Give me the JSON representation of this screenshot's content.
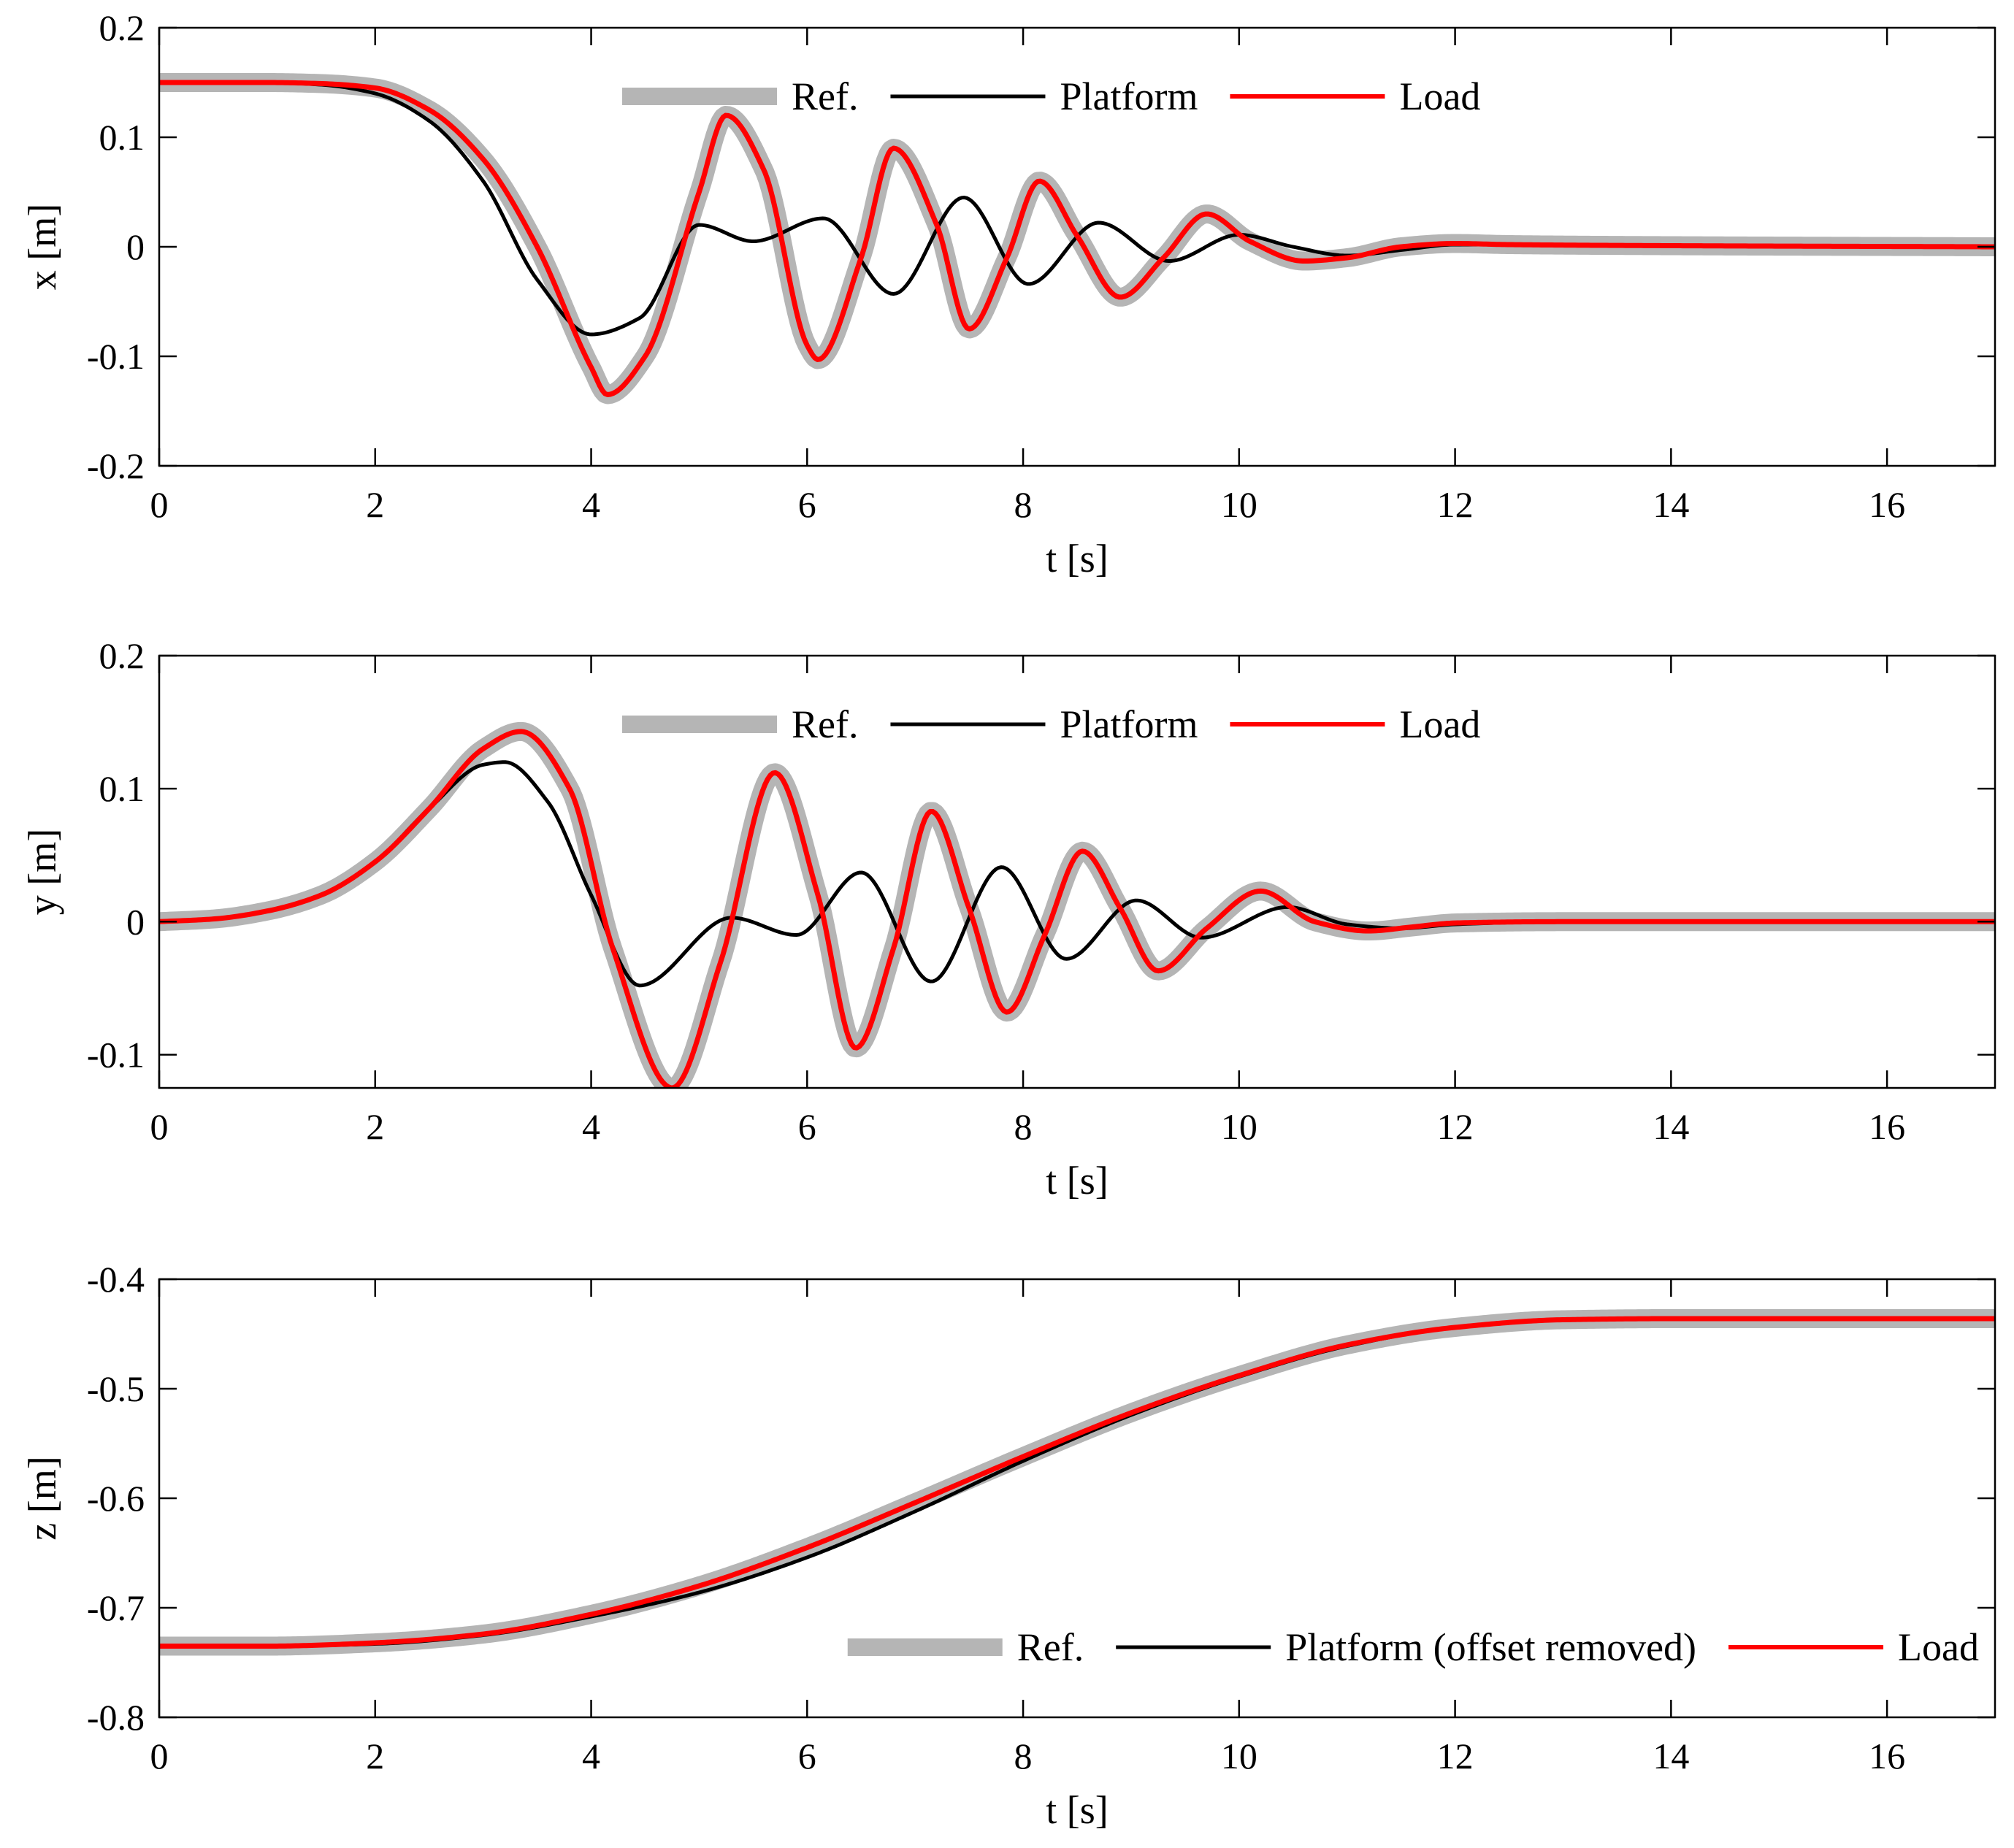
{
  "figure": {
    "description_free": true,
    "series_styles": {
      "ref": {
        "color": "#b5b5b5",
        "label_key": "ref"
      },
      "platform": {
        "color": "#000000",
        "label_key": "platform"
      },
      "load": {
        "color": "#ff0000",
        "label_key": "load"
      }
    }
  },
  "chart_data": [
    {
      "type": "line",
      "id": "x-panel",
      "xlabel": "t [s]",
      "ylabel": "x [m]",
      "xlim": [
        0,
        17
      ],
      "ylim": [
        -0.2,
        0.2
      ],
      "xticks": [
        0,
        2,
        4,
        6,
        8,
        10,
        12,
        14,
        16
      ],
      "xtick_labels": [
        "0",
        "2",
        "4",
        "6",
        "8",
        "10",
        "12",
        "14",
        "16"
      ],
      "yticks": [
        -0.2,
        -0.1,
        0,
        0.1,
        0.2
      ],
      "ytick_labels": [
        "-0.2",
        "-0.1",
        "0",
        "0.1",
        "0.2"
      ],
      "legend": {
        "position": "top-center",
        "entries": [
          "Ref.",
          "Platform",
          "Load"
        ]
      },
      "series": [
        {
          "name": "Ref.",
          "style": "ref",
          "x": [
            0,
            1,
            1.5,
            2,
            2.5,
            3,
            3.5,
            4,
            4.15,
            4.5,
            5,
            5.25,
            5.6,
            6,
            6.1,
            6.5,
            6.8,
            7.2,
            7.5,
            7.85,
            8.15,
            8.5,
            8.9,
            9.3,
            9.7,
            10.1,
            10.6,
            11,
            11.5,
            12,
            12.5,
            14,
            17
          ],
          "y": [
            0.15,
            0.15,
            0.149,
            0.145,
            0.125,
            0.08,
            0.0,
            -0.11,
            -0.135,
            -0.1,
            0.05,
            0.12,
            0.07,
            -0.09,
            -0.103,
            -0.01,
            0.09,
            0.02,
            -0.075,
            -0.01,
            0.06,
            0.01,
            -0.046,
            -0.01,
            0.03,
            0.005,
            -0.013,
            -0.01,
            0.0,
            0.003,
            0.002,
            0.001,
            0.0
          ]
        },
        {
          "name": "Platform",
          "style": "platform",
          "x": [
            0,
            1,
            1.5,
            2,
            2.5,
            3,
            3.5,
            4,
            4.45,
            5,
            5.5,
            6.15,
            6.8,
            7.45,
            8.05,
            8.7,
            9.35,
            10.0,
            10.5,
            11,
            11.5,
            12,
            14,
            17
          ],
          "y": [
            0.15,
            0.15,
            0.148,
            0.14,
            0.115,
            0.06,
            -0.03,
            -0.08,
            -0.065,
            0.02,
            0.005,
            0.026,
            -0.043,
            0.045,
            -0.034,
            0.022,
            -0.013,
            0.011,
            0.0,
            -0.008,
            -0.003,
            0.002,
            0.001,
            0.0
          ]
        },
        {
          "name": "Load",
          "style": "load",
          "x": [
            0,
            1,
            1.5,
            2,
            2.5,
            3,
            3.5,
            4,
            4.15,
            4.5,
            5,
            5.25,
            5.6,
            6,
            6.1,
            6.5,
            6.8,
            7.2,
            7.5,
            7.85,
            8.15,
            8.5,
            8.9,
            9.3,
            9.7,
            10.1,
            10.6,
            11,
            11.5,
            12,
            12.5,
            14,
            17
          ],
          "y": [
            0.15,
            0.15,
            0.149,
            0.145,
            0.125,
            0.08,
            0.0,
            -0.11,
            -0.135,
            -0.1,
            0.05,
            0.12,
            0.07,
            -0.09,
            -0.103,
            -0.01,
            0.09,
            0.02,
            -0.075,
            -0.01,
            0.06,
            0.01,
            -0.046,
            -0.01,
            0.03,
            0.005,
            -0.013,
            -0.01,
            0.0,
            0.003,
            0.002,
            0.001,
            0.0
          ]
        }
      ]
    },
    {
      "type": "line",
      "id": "y-panel",
      "xlabel": "t [s]",
      "ylabel": "y [m]",
      "xlim": [
        0,
        17
      ],
      "ylim": [
        -0.125,
        0.2
      ],
      "xticks": [
        0,
        2,
        4,
        6,
        8,
        10,
        12,
        14,
        16
      ],
      "xtick_labels": [
        "0",
        "2",
        "4",
        "6",
        "8",
        "10",
        "12",
        "14",
        "16"
      ],
      "yticks": [
        -0.1,
        0,
        0.1,
        0.2
      ],
      "ytick_labels": [
        "-0.1",
        "0",
        "0.1",
        "0.2"
      ],
      "legend": {
        "position": "top-center",
        "entries": [
          "Ref.",
          "Platform",
          "Load"
        ]
      },
      "series": [
        {
          "name": "Ref.",
          "style": "ref",
          "x": [
            0,
            0.5,
            1,
            1.5,
            2,
            2.5,
            3,
            3.35,
            3.8,
            4.2,
            4.75,
            5.2,
            5.7,
            6.1,
            6.45,
            6.8,
            7.15,
            7.5,
            7.85,
            8.2,
            8.55,
            8.9,
            9.25,
            9.7,
            10.2,
            10.7,
            11.2,
            11.6,
            12,
            13,
            17
          ],
          "y": [
            0.0,
            0.002,
            0.008,
            0.02,
            0.045,
            0.085,
            0.13,
            0.143,
            0.1,
            -0.02,
            -0.125,
            -0.03,
            0.112,
            0.02,
            -0.095,
            -0.02,
            0.083,
            0.01,
            -0.068,
            -0.01,
            0.053,
            0.01,
            -0.037,
            -0.005,
            0.023,
            0.0,
            -0.007,
            -0.004,
            -0.001,
            0.0,
            0.0
          ]
        },
        {
          "name": "Platform",
          "style": "platform",
          "x": [
            0,
            0.5,
            1,
            1.5,
            2,
            2.5,
            3,
            3.2,
            3.6,
            4.0,
            4.45,
            5.3,
            5.9,
            6.5,
            7.15,
            7.8,
            8.4,
            9.05,
            9.65,
            10.45,
            11.0,
            11.5,
            12,
            13,
            17
          ],
          "y": [
            0.0,
            0.002,
            0.008,
            0.02,
            0.045,
            0.085,
            0.118,
            0.12,
            0.09,
            0.02,
            -0.048,
            0.003,
            -0.01,
            0.037,
            -0.045,
            0.041,
            -0.028,
            0.016,
            -0.012,
            0.011,
            -0.002,
            -0.005,
            -0.002,
            0.0,
            0.0
          ]
        },
        {
          "name": "Load",
          "style": "load",
          "x": [
            0,
            0.5,
            1,
            1.5,
            2,
            2.5,
            3,
            3.35,
            3.8,
            4.2,
            4.75,
            5.2,
            5.7,
            6.1,
            6.45,
            6.8,
            7.15,
            7.5,
            7.85,
            8.2,
            8.55,
            8.9,
            9.25,
            9.7,
            10.2,
            10.7,
            11.2,
            11.6,
            12,
            13,
            17
          ],
          "y": [
            0.0,
            0.002,
            0.008,
            0.02,
            0.045,
            0.085,
            0.13,
            0.143,
            0.1,
            -0.02,
            -0.125,
            -0.03,
            0.112,
            0.02,
            -0.095,
            -0.02,
            0.083,
            0.01,
            -0.068,
            -0.01,
            0.053,
            0.01,
            -0.037,
            -0.005,
            0.023,
            0.0,
            -0.007,
            -0.004,
            -0.001,
            0.0,
            0.0
          ]
        }
      ]
    },
    {
      "type": "line",
      "id": "z-panel",
      "xlabel": "t [s]",
      "ylabel": "z [m]",
      "xlim": [
        0,
        17
      ],
      "ylim": [
        -0.8,
        -0.4
      ],
      "xticks": [
        0,
        2,
        4,
        6,
        8,
        10,
        12,
        14,
        16
      ],
      "xtick_labels": [
        "0",
        "2",
        "4",
        "6",
        "8",
        "10",
        "12",
        "14",
        "16"
      ],
      "yticks": [
        -0.8,
        -0.7,
        -0.6,
        -0.5,
        -0.4
      ],
      "ytick_labels": [
        "-0.8",
        "-0.7",
        "-0.6",
        "-0.5",
        "-0.4"
      ],
      "legend": {
        "position": "bottom-right",
        "entries": [
          "Ref.",
          "Platform (offset removed)",
          "Load"
        ]
      },
      "series": [
        {
          "name": "Ref.",
          "style": "ref",
          "x": [
            0,
            1,
            2,
            3,
            4,
            5,
            6,
            7,
            8,
            9,
            10,
            11,
            12,
            13,
            14,
            17
          ],
          "y": [
            -0.735,
            -0.735,
            -0.732,
            -0.724,
            -0.706,
            -0.68,
            -0.645,
            -0.604,
            -0.562,
            -0.522,
            -0.488,
            -0.46,
            -0.444,
            -0.437,
            -0.436,
            -0.436
          ]
        },
        {
          "name": "Platform (offset removed)",
          "style": "platform",
          "x": [
            0,
            1,
            2,
            3,
            4,
            5,
            6,
            7,
            8,
            9,
            10,
            11,
            12,
            13,
            14,
            17
          ],
          "y": [
            -0.735,
            -0.735,
            -0.733,
            -0.725,
            -0.708,
            -0.686,
            -0.654,
            -0.612,
            -0.566,
            -0.524,
            -0.489,
            -0.461,
            -0.444,
            -0.437,
            -0.436,
            -0.436
          ]
        },
        {
          "name": "Load",
          "style": "load",
          "x": [
            0,
            1,
            2,
            3,
            4,
            5,
            6,
            7,
            8,
            9,
            10,
            11,
            12,
            13,
            14,
            17
          ],
          "y": [
            -0.735,
            -0.735,
            -0.732,
            -0.724,
            -0.706,
            -0.68,
            -0.645,
            -0.604,
            -0.562,
            -0.522,
            -0.488,
            -0.46,
            -0.444,
            -0.437,
            -0.436,
            -0.436
          ]
        }
      ]
    }
  ]
}
